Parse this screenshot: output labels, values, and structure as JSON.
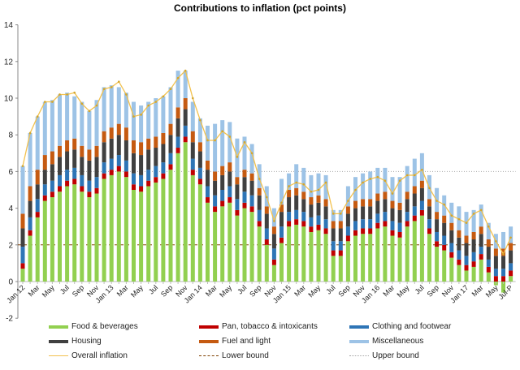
{
  "chart_data": {
    "type": "bar",
    "stacked": true,
    "title": "Contributions to inflation (pct points)",
    "xlabel": "",
    "ylabel": "",
    "ylim": [
      -2,
      14
    ],
    "yticks": [
      -2,
      0,
      2,
      4,
      6,
      8,
      10,
      12,
      14
    ],
    "xtick_labels": [
      "Jan 12",
      "Mar",
      "May",
      "Jul",
      "Sep",
      "Nov",
      "Jan 13",
      "Mar",
      "May",
      "Jul",
      "Sep",
      "Nov",
      "Jan 14",
      "Mar",
      "May",
      "Jul",
      "Sep",
      "Nov",
      "Jan 15",
      "Mar",
      "May",
      "Jul",
      "Sep",
      "Nov",
      "Jan 16",
      "Mar",
      "May",
      "Jul",
      "Sep",
      "Nov",
      "Jan 17",
      "Mar",
      "May",
      "Jul-P"
    ],
    "categories": [
      "Jan 12",
      "Feb 12",
      "Mar 12",
      "Apr 12",
      "May 12",
      "Jun 12",
      "Jul 12",
      "Aug 12",
      "Sep 12",
      "Oct 12",
      "Nov 12",
      "Dec 12",
      "Jan 13",
      "Feb 13",
      "Mar 13",
      "Apr 13",
      "May 13",
      "Jun 13",
      "Jul 13",
      "Aug 13",
      "Sep 13",
      "Oct 13",
      "Nov 13",
      "Dec 13",
      "Jan 14",
      "Feb 14",
      "Mar 14",
      "Apr 14",
      "May 14",
      "Jun 14",
      "Jul 14",
      "Aug 14",
      "Sep 14",
      "Oct 14",
      "Nov 14",
      "Dec 14",
      "Jan 15",
      "Feb 15",
      "Mar 15",
      "Apr 15",
      "May 15",
      "Jun 15",
      "Jul 15",
      "Aug 15",
      "Sep 15",
      "Oct 15",
      "Nov 15",
      "Dec 15",
      "Jan 16",
      "Feb 16",
      "Mar 16",
      "Apr 16",
      "May 16",
      "Jun 16",
      "Jul 16",
      "Aug 16",
      "Sep 16",
      "Oct 16",
      "Nov 16",
      "Dec 16",
      "Jan 17",
      "Feb 17",
      "Mar 17",
      "Apr 17",
      "May 17",
      "Jun 17",
      "Jul 17"
    ],
    "series": [
      {
        "name": "Food & beverages",
        "color": "#92D050",
        "values": [
          0.7,
          2.5,
          3.5,
          4.4,
          4.6,
          4.9,
          5.2,
          5.3,
          4.9,
          4.6,
          4.8,
          5.6,
          5.8,
          6.0,
          5.7,
          5.0,
          4.9,
          5.2,
          5.4,
          5.6,
          6.1,
          7.0,
          7.6,
          5.8,
          5.3,
          4.3,
          3.8,
          4.1,
          4.3,
          3.6,
          4.0,
          3.8,
          3.0,
          2.0,
          0.9,
          2.1,
          3.0,
          3.1,
          3.0,
          2.7,
          2.8,
          2.6,
          1.4,
          1.4,
          2.2,
          2.5,
          2.6,
          2.6,
          2.9,
          3.0,
          2.5,
          2.4,
          3.0,
          3.3,
          3.6,
          2.6,
          1.9,
          1.7,
          1.3,
          0.9,
          0.6,
          0.8,
          1.2,
          0.5,
          -0.2,
          -0.6,
          0.3
        ]
      },
      {
        "name": "Pan, tobacco & intoxicants",
        "color": "#C00000",
        "values": [
          0.3,
          0.3,
          0.3,
          0.3,
          0.3,
          0.3,
          0.3,
          0.3,
          0.3,
          0.3,
          0.3,
          0.3,
          0.3,
          0.3,
          0.3,
          0.3,
          0.3,
          0.3,
          0.3,
          0.3,
          0.3,
          0.3,
          0.3,
          0.3,
          0.3,
          0.3,
          0.3,
          0.3,
          0.3,
          0.3,
          0.3,
          0.3,
          0.3,
          0.3,
          0.3,
          0.3,
          0.3,
          0.3,
          0.3,
          0.3,
          0.3,
          0.3,
          0.3,
          0.3,
          0.3,
          0.3,
          0.3,
          0.3,
          0.3,
          0.3,
          0.3,
          0.3,
          0.3,
          0.3,
          0.3,
          0.3,
          0.3,
          0.3,
          0.3,
          0.3,
          0.3,
          0.3,
          0.3,
          0.3,
          0.3,
          0.3,
          0.3
        ]
      },
      {
        "name": "Clothing and footwear",
        "color": "#2E75B6",
        "values": [
          0.9,
          0.7,
          0.7,
          0.6,
          0.6,
          0.6,
          0.6,
          0.6,
          0.6,
          0.6,
          0.6,
          0.6,
          0.6,
          0.6,
          0.6,
          0.6,
          0.6,
          0.6,
          0.6,
          0.6,
          0.6,
          0.6,
          0.6,
          0.6,
          0.6,
          0.6,
          0.6,
          0.6,
          0.6,
          0.6,
          0.6,
          0.6,
          0.6,
          0.6,
          0.6,
          0.6,
          0.5,
          0.5,
          0.5,
          0.5,
          0.5,
          0.5,
          0.5,
          0.5,
          0.5,
          0.5,
          0.5,
          0.5,
          0.5,
          0.5,
          0.5,
          0.5,
          0.5,
          0.5,
          0.5,
          0.5,
          0.5,
          0.5,
          0.5,
          0.5,
          0.5,
          0.5,
          0.4,
          0.4,
          0.4,
          0.4,
          0.4
        ]
      },
      {
        "name": "Housing",
        "color": "#404040",
        "values": [
          1.0,
          0.9,
          0.8,
          0.8,
          0.9,
          1.0,
          1.0,
          1.0,
          1.0,
          1.1,
          1.1,
          1.1,
          1.1,
          1.1,
          1.1,
          1.1,
          1.1,
          1.1,
          1.0,
          1.0,
          1.0,
          1.0,
          0.9,
          0.9,
          0.9,
          0.9,
          0.8,
          0.8,
          0.8,
          0.8,
          0.8,
          0.8,
          0.8,
          0.8,
          0.8,
          0.8,
          0.8,
          0.8,
          0.7,
          0.7,
          0.7,
          0.7,
          0.7,
          0.7,
          0.7,
          0.7,
          0.7,
          0.7,
          0.7,
          0.7,
          0.7,
          0.7,
          0.7,
          0.7,
          0.7,
          0.7,
          0.7,
          0.7,
          0.7,
          0.7,
          0.7,
          0.7,
          0.7,
          0.7,
          0.7,
          0.7,
          0.7
        ]
      },
      {
        "name": "Fuel and light",
        "color": "#C55A11",
        "values": [
          0.8,
          0.8,
          0.8,
          0.8,
          0.7,
          0.6,
          0.6,
          0.6,
          0.6,
          0.6,
          0.6,
          0.6,
          0.6,
          0.6,
          0.7,
          0.7,
          0.7,
          0.6,
          0.6,
          0.6,
          0.6,
          0.6,
          0.6,
          0.6,
          0.5,
          0.5,
          0.5,
          0.5,
          0.5,
          0.4,
          0.4,
          0.4,
          0.4,
          0.4,
          0.4,
          0.4,
          0.4,
          0.4,
          0.4,
          0.4,
          0.4,
          0.4,
          0.4,
          0.4,
          0.4,
          0.4,
          0.4,
          0.4,
          0.4,
          0.4,
          0.4,
          0.4,
          0.4,
          0.4,
          0.4,
          0.4,
          0.4,
          0.4,
          0.4,
          0.4,
          0.4,
          0.4,
          0.4,
          0.4,
          0.4,
          0.4,
          0.4
        ]
      },
      {
        "name": "Miscellaneous",
        "color": "#9DC3E6",
        "values": [
          2.6,
          2.9,
          2.9,
          2.9,
          2.8,
          2.8,
          2.6,
          2.3,
          2.4,
          2.1,
          2.5,
          2.4,
          2.3,
          2.0,
          1.9,
          2.1,
          2.0,
          2.0,
          2.1,
          2.0,
          2.0,
          2.0,
          1.5,
          1.6,
          1.3,
          1.9,
          2.6,
          2.5,
          2.2,
          2.1,
          1.8,
          1.6,
          1.3,
          1.1,
          1.0,
          1.4,
          0.9,
          1.3,
          1.3,
          1.2,
          1.2,
          1.3,
          0.6,
          0.6,
          1.1,
          1.3,
          1.4,
          1.5,
          1.4,
          1.3,
          1.3,
          1.4,
          1.4,
          1.5,
          1.5,
          1.3,
          1.3,
          1.1,
          1.1,
          1.3,
          1.3,
          1.2,
          1.2,
          0.9,
          0.8,
          0.9,
          0.9
        ]
      },
      {
        "name": "Overall inflation",
        "type": "line",
        "color": "#F2C14E",
        "values": [
          6.3,
          8.1,
          9.0,
          9.8,
          9.8,
          10.2,
          10.2,
          10.3,
          9.7,
          9.3,
          9.6,
          10.5,
          10.6,
          10.9,
          10.2,
          9.0,
          9.1,
          9.6,
          9.8,
          10.1,
          10.5,
          11.1,
          11.5,
          10.0,
          8.8,
          7.7,
          7.7,
          8.2,
          7.9,
          6.8,
          7.6,
          7.0,
          5.6,
          4.6,
          3.3,
          4.3,
          5.2,
          5.4,
          5.3,
          4.9,
          5.0,
          5.4,
          3.7,
          3.7,
          4.4,
          5.0,
          5.4,
          5.6,
          5.7,
          5.5,
          4.8,
          5.5,
          5.8,
          5.8,
          6.1,
          5.1,
          4.4,
          4.2,
          3.6,
          3.4,
          3.2,
          3.7,
          3.9,
          3.0,
          2.2,
          1.5,
          2.4
        ]
      },
      {
        "name": "Lower bound",
        "type": "hline",
        "color": "#7F3F00",
        "style": "dashed",
        "value": 2
      },
      {
        "name": "Upper bound",
        "type": "hline",
        "color": "#A6A6A6",
        "style": "dotted",
        "value": 6
      }
    ],
    "grid": false,
    "legend_position": "bottom"
  },
  "legend": [
    {
      "label": "Food & beverages",
      "kind": "bar",
      "color": "#92D050"
    },
    {
      "label": "Pan, tobacco & intoxicants",
      "kind": "bar",
      "color": "#C00000"
    },
    {
      "label": "Clothing and footwear",
      "kind": "bar",
      "color": "#2E75B6"
    },
    {
      "label": "Housing",
      "kind": "bar",
      "color": "#404040"
    },
    {
      "label": "Fuel and light",
      "kind": "bar",
      "color": "#C55A11"
    },
    {
      "label": "Miscellaneous",
      "kind": "bar",
      "color": "#9DC3E6"
    },
    {
      "label": "Overall inflation",
      "kind": "line",
      "color": "#F2C14E"
    },
    {
      "label": "Lower bound",
      "kind": "dashed",
      "color": "#7F3F00"
    },
    {
      "label": "Upper bound",
      "kind": "dotted",
      "color": "#A6A6A6"
    }
  ]
}
